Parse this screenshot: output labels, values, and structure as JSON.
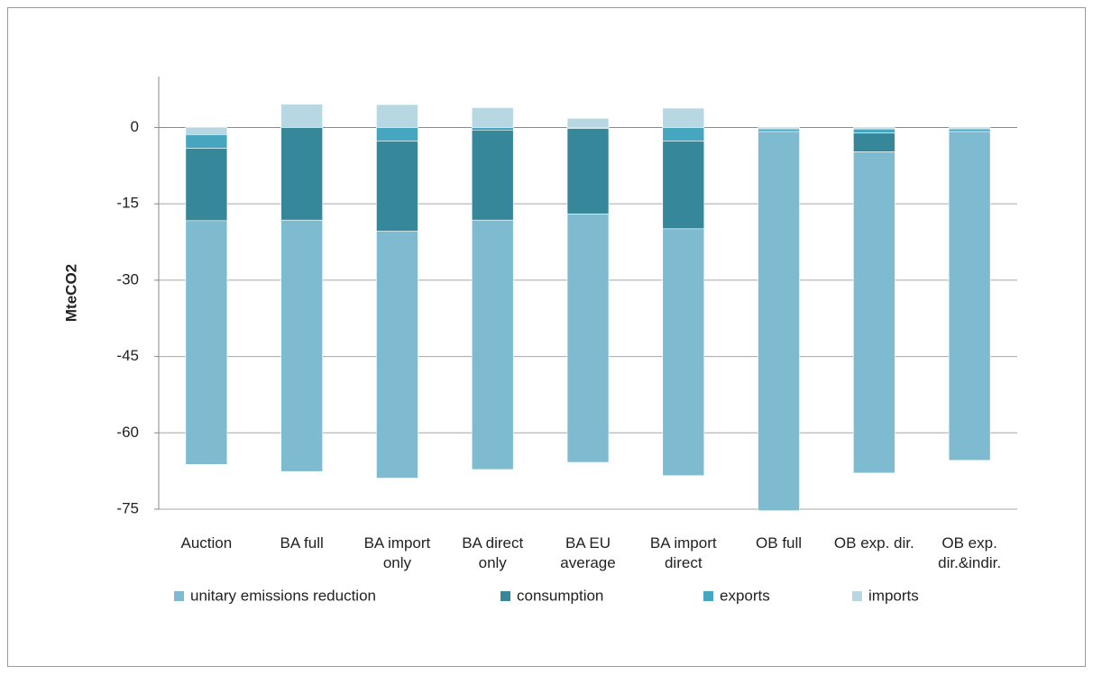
{
  "chart_data": {
    "type": "stacked-bar",
    "y_label": "MteCO2",
    "categories": [
      "Auction",
      "BA full",
      "BA import only",
      "BA direct only",
      "BA EU average",
      "BA import direct",
      "OB full",
      "OB exp. dir.",
      "OB exp. dir.&indir."
    ],
    "series": [
      {
        "name": "unitary emissions reduction",
        "color": "#7fbbd0",
        "values": [
          -47.9,
          -49.4,
          -48.5,
          -49.0,
          -48.8,
          -48.5,
          -74.5,
          -63.1,
          -64.6
        ]
      },
      {
        "name": "consumption",
        "color": "#37879a",
        "values": [
          -14.2,
          -18.2,
          -17.7,
          -17.7,
          -16.8,
          -17.2,
          0,
          -3.7,
          0
        ]
      },
      {
        "name": "exports",
        "color": "#46a6bf",
        "values": [
          -2.7,
          0,
          -2.7,
          -0.5,
          -0.2,
          -2.7,
          -0.5,
          -0.8,
          -0.5
        ]
      },
      {
        "name": "imports",
        "color": "#b7d7e3",
        "values": [
          -1.4,
          4.6,
          4.5,
          3.9,
          1.8,
          3.8,
          -0.3,
          -0.3,
          -0.3
        ]
      }
    ],
    "ylim": [
      -75,
      10
    ],
    "yticks": [
      0,
      -15,
      -30,
      -45,
      -60,
      -75
    ],
    "grid": true
  }
}
